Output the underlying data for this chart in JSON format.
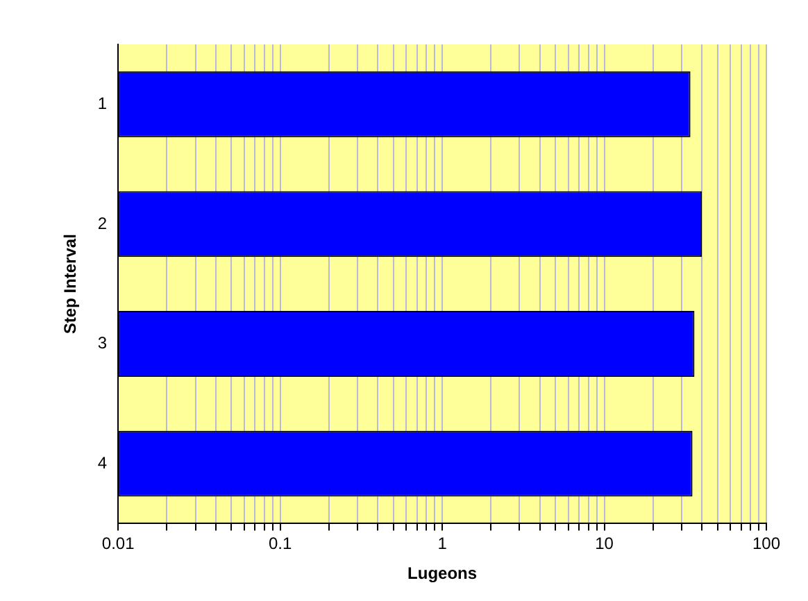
{
  "chart_data": {
    "type": "bar",
    "orientation": "horizontal",
    "xlabel": "Lugeons",
    "ylabel": "Step Interval",
    "categories": [
      "1",
      "2",
      "3",
      "4"
    ],
    "values": [
      34,
      40,
      36,
      35
    ],
    "color": "#0000ff",
    "log": "x",
    "grid": "x",
    "xlim": [
      0.01,
      100
    ],
    "xticks": [
      0.01,
      {
        "value": 0.02,
        "label": null
      },
      {
        "value": 0.03,
        "label": null
      },
      {
        "value": 0.04,
        "label": null
      },
      {
        "value": 0.05,
        "label": null
      },
      {
        "value": 0.06,
        "label": null
      },
      {
        "value": 0.07,
        "label": null
      },
      {
        "value": 0.08,
        "label": null
      },
      {
        "value": 0.09,
        "label": null
      },
      0.1,
      {
        "value": 0.2,
        "label": null
      },
      {
        "value": 0.3,
        "label": null
      },
      {
        "value": 0.4,
        "label": null
      },
      {
        "value": 0.5,
        "label": null
      },
      {
        "value": 0.6,
        "label": null
      },
      {
        "value": 0.7,
        "label": null
      },
      {
        "value": 0.8,
        "label": null
      },
      {
        "value": 0.9,
        "label": null
      },
      1,
      {
        "value": 2,
        "label": null
      },
      {
        "value": 3,
        "label": null
      },
      {
        "value": 4,
        "label": null
      },
      {
        "value": 5,
        "label": null
      },
      {
        "value": 6,
        "label": null
      },
      {
        "value": 7,
        "label": null
      },
      {
        "value": 8,
        "label": null
      },
      {
        "value": 9,
        "label": null
      },
      10,
      {
        "value": 20,
        "label": null
      },
      {
        "value": 30,
        "label": null
      },
      {
        "value": 40,
        "label": null
      },
      {
        "value": 50,
        "label": null
      },
      {
        "value": 60,
        "label": null
      },
      {
        "value": 70,
        "label": null
      },
      {
        "value": 80,
        "label": null
      },
      {
        "value": 90,
        "label": null
      },
      100
    ]
  }
}
